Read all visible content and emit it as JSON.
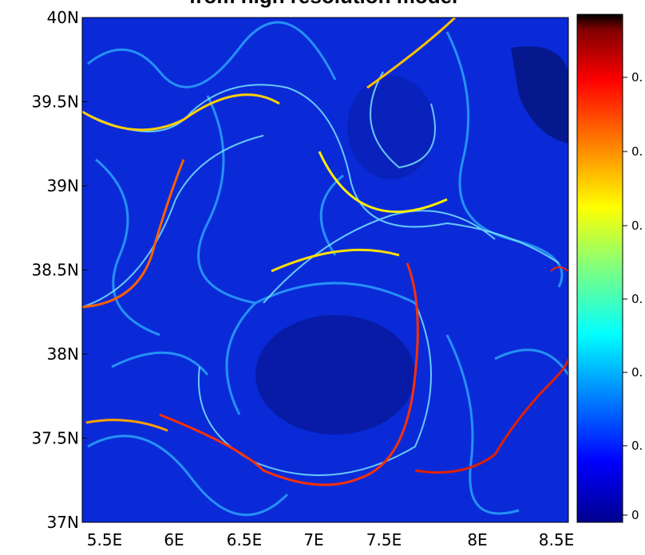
{
  "title": "from high resolution model",
  "map": {
    "y_labels": [
      "40N",
      "39.5N",
      "39N",
      "38.5N",
      "38N",
      "37.5N",
      "37N"
    ],
    "x_labels": [
      "5.5E",
      "6E",
      "6.5E",
      "7E",
      "7.5E",
      "8E",
      "8.5E"
    ]
  },
  "colorbar": {
    "labels": [
      "0.",
      "0.",
      "0.",
      "0.",
      "0.",
      "0.",
      "0"
    ]
  }
}
